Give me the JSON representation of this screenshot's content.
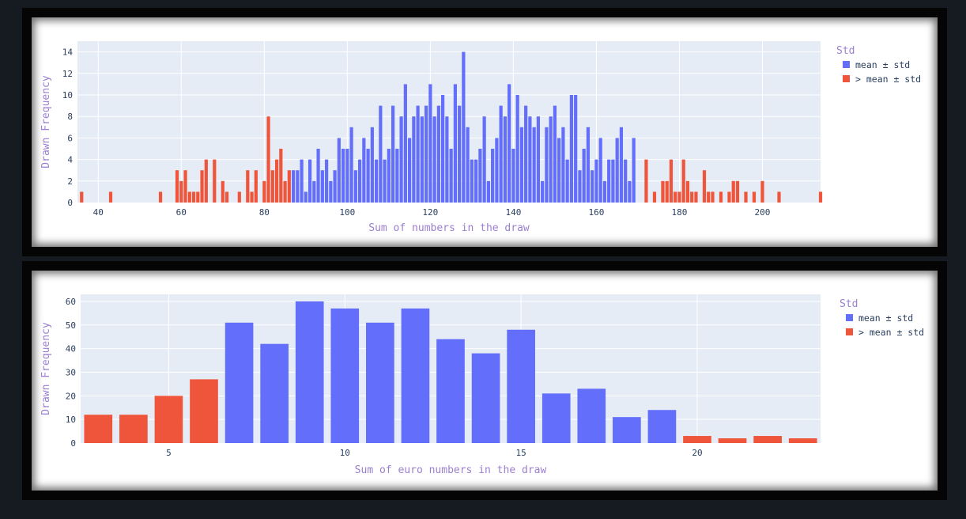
{
  "theme": {
    "plot_bg": "#e5ecf6",
    "grid": "#ffffff",
    "text": "#2a3f5f",
    "axis_title": "#9b7fcf",
    "legend_title": "#9b7fcf",
    "blue": "#636efa",
    "red": "#ef553b"
  },
  "chart_data": [
    {
      "type": "bar",
      "xlabel": "Sum of numbers in the draw",
      "ylabel": "Drawn Frequency",
      "legend_title": "Std",
      "legend_position": "top-right",
      "grid": true,
      "xlim": [
        35,
        214
      ],
      "ylim": [
        0,
        15
      ],
      "x_ticks": [
        "40",
        "60",
        "80",
        "100",
        "120",
        "140",
        "160",
        "180",
        "200"
      ],
      "y_ticks": [
        "0",
        "2",
        "4",
        "6",
        "8",
        "10",
        "12",
        "14"
      ],
      "series": [
        {
          "name": "mean ± std",
          "color": "#636efa",
          "x": [
            87,
            88,
            89,
            90,
            91,
            92,
            93,
            94,
            95,
            96,
            97,
            98,
            99,
            100,
            101,
            102,
            103,
            104,
            105,
            106,
            107,
            108,
            109,
            110,
            111,
            112,
            113,
            114,
            115,
            116,
            117,
            118,
            119,
            120,
            121,
            122,
            123,
            124,
            125,
            126,
            127,
            128,
            129,
            130,
            131,
            132,
            133,
            134,
            135,
            136,
            137,
            138,
            139,
            140,
            141,
            142,
            143,
            144,
            145,
            146,
            147,
            148,
            149,
            150,
            151,
            152,
            153,
            154,
            155,
            156,
            157,
            158,
            159,
            160,
            161,
            162,
            163,
            164,
            165,
            166,
            167,
            168,
            169
          ],
          "y": [
            3,
            3,
            4,
            1,
            4,
            2,
            5,
            3,
            4,
            2,
            3,
            6,
            5,
            5,
            7,
            3,
            4,
            6,
            5,
            7,
            4,
            9,
            4,
            5,
            9,
            5,
            8,
            11,
            6,
            8,
            9,
            8,
            9,
            11,
            8,
            9,
            10,
            8,
            5,
            11,
            9,
            14,
            7,
            4,
            4,
            5,
            8,
            2,
            5,
            6,
            9,
            8,
            11,
            5,
            10,
            7,
            9,
            8,
            7,
            8,
            2,
            7,
            8,
            9,
            6,
            7,
            4,
            10,
            10,
            3,
            5,
            7,
            3,
            4,
            6,
            2,
            4,
            4,
            6,
            7,
            4,
            2,
            6
          ]
        },
        {
          "name": "> mean ± std",
          "color": "#ef553b",
          "x": [
            36,
            43,
            55,
            59,
            60,
            61,
            62,
            63,
            64,
            65,
            66,
            68,
            70,
            71,
            74,
            76,
            77,
            78,
            80,
            81,
            82,
            83,
            84,
            85,
            86,
            172,
            174,
            176,
            177,
            178,
            179,
            180,
            181,
            182,
            183,
            184,
            186,
            187,
            188,
            190,
            192,
            193,
            194,
            196,
            198,
            200,
            204,
            214
          ],
          "y": [
            1,
            1,
            1,
            3,
            2,
            3,
            1,
            1,
            1,
            3,
            4,
            4,
            2,
            1,
            1,
            3,
            1,
            3,
            2,
            8,
            3,
            4,
            5,
            2,
            3,
            4,
            1,
            2,
            2,
            4,
            1,
            1,
            4,
            2,
            1,
            1,
            3,
            1,
            1,
            1,
            1,
            2,
            2,
            1,
            1,
            2,
            1,
            1
          ]
        }
      ]
    },
    {
      "type": "bar",
      "xlabel": "Sum of euro numbers in the draw",
      "ylabel": "Drawn Frequency",
      "legend_title": "Std",
      "legend_position": "top-right",
      "grid": true,
      "xlim": [
        2.5,
        23.5
      ],
      "ylim": [
        0,
        63
      ],
      "x_ticks": [
        "5",
        "10",
        "15",
        "20"
      ],
      "y_ticks": [
        "0",
        "10",
        "20",
        "30",
        "40",
        "50",
        "60"
      ],
      "series": [
        {
          "name": "mean ± std",
          "color": "#636efa",
          "x": [
            7,
            8,
            9,
            10,
            11,
            12,
            13,
            14,
            15,
            16,
            17,
            18,
            19
          ],
          "y": [
            51,
            42,
            60,
            57,
            51,
            57,
            44,
            38,
            48,
            21,
            23,
            11,
            14
          ]
        },
        {
          "name": "> mean ± std",
          "color": "#ef553b",
          "x": [
            3,
            4,
            5,
            6,
            20,
            21,
            22,
            23
          ],
          "y": [
            12,
            12,
            20,
            27,
            3,
            2,
            3,
            2
          ]
        }
      ]
    }
  ]
}
